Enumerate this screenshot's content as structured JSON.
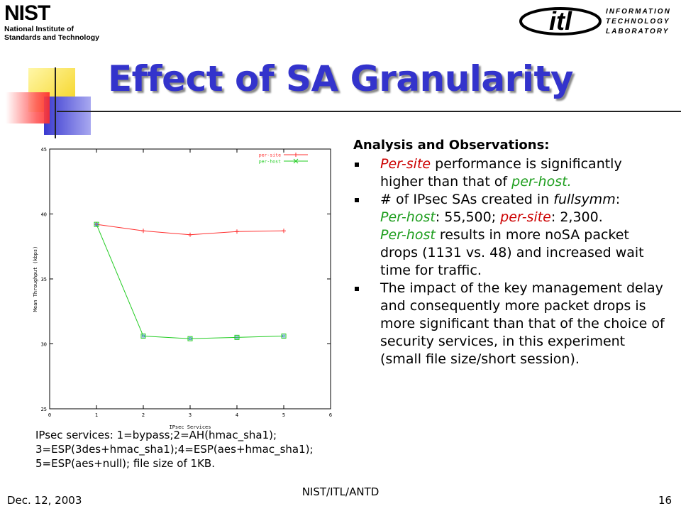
{
  "header": {
    "nist_logo": {
      "word": "NIST",
      "line1": "National Institute of",
      "line2": "Standards and Technology"
    },
    "itl_logo": {
      "word": "itl",
      "line1": "INFORMATION",
      "line2": "TECHNOLOGY",
      "line3": "LABORATORY"
    }
  },
  "title": "Effect of SA Granularity",
  "chart_data": {
    "type": "line",
    "xlabel": "IPsec Services",
    "ylabel": "Mean Throughput (kbps)",
    "xlim": [
      0,
      6
    ],
    "ylim": [
      25,
      45
    ],
    "x_ticks": [
      "0",
      "1",
      "2",
      "3",
      "4",
      "5",
      "6"
    ],
    "y_ticks": [
      "25",
      "30",
      "35",
      "40",
      "45"
    ],
    "x": [
      1,
      2,
      3,
      4,
      5
    ],
    "series": [
      {
        "name": "per-site",
        "marker": "+",
        "color": "#ff3030",
        "values": [
          39.2,
          38.7,
          38.4,
          38.65,
          38.7
        ]
      },
      {
        "name": "per-host",
        "marker": "x",
        "color": "#22cc22",
        "values": [
          39.2,
          30.6,
          30.4,
          30.5,
          30.6
        ]
      }
    ],
    "grid": false,
    "legend": "top-right"
  },
  "caption": {
    "line1": "IPsec services: 1=bypass;2=AH(hmac_sha1);",
    "line2": "3=ESP(3des+hmac_sha1);4=ESP(aes+hmac_sha1);",
    "line3": "5=ESP(aes+null); file size of 1KB."
  },
  "analysis": {
    "heading": "Analysis and Observations:",
    "b1": {
      "a": "Per-site",
      "b": " performance is significantly higher than that of ",
      "c": "per-host."
    },
    "b2": {
      "a": "# of IPsec SAs created in ",
      "b": "fullsymm",
      "c": ":",
      "d": "Per-host",
      "e": ": 55,500; ",
      "f": "per-site",
      "g": ": 2,300.",
      "h": "Per-host",
      "i": " results in more noSA packet drops (1131 vs. 48) and increased wait time for traffic."
    },
    "b3": "The impact of the key management delay and consequently more packet drops is more significant than that of the choice of security services, in this experiment (small file size/short session)."
  },
  "footer": {
    "date": "Dec. 12, 2003",
    "center": "NIST/ITL/ANTD",
    "page": "16"
  }
}
